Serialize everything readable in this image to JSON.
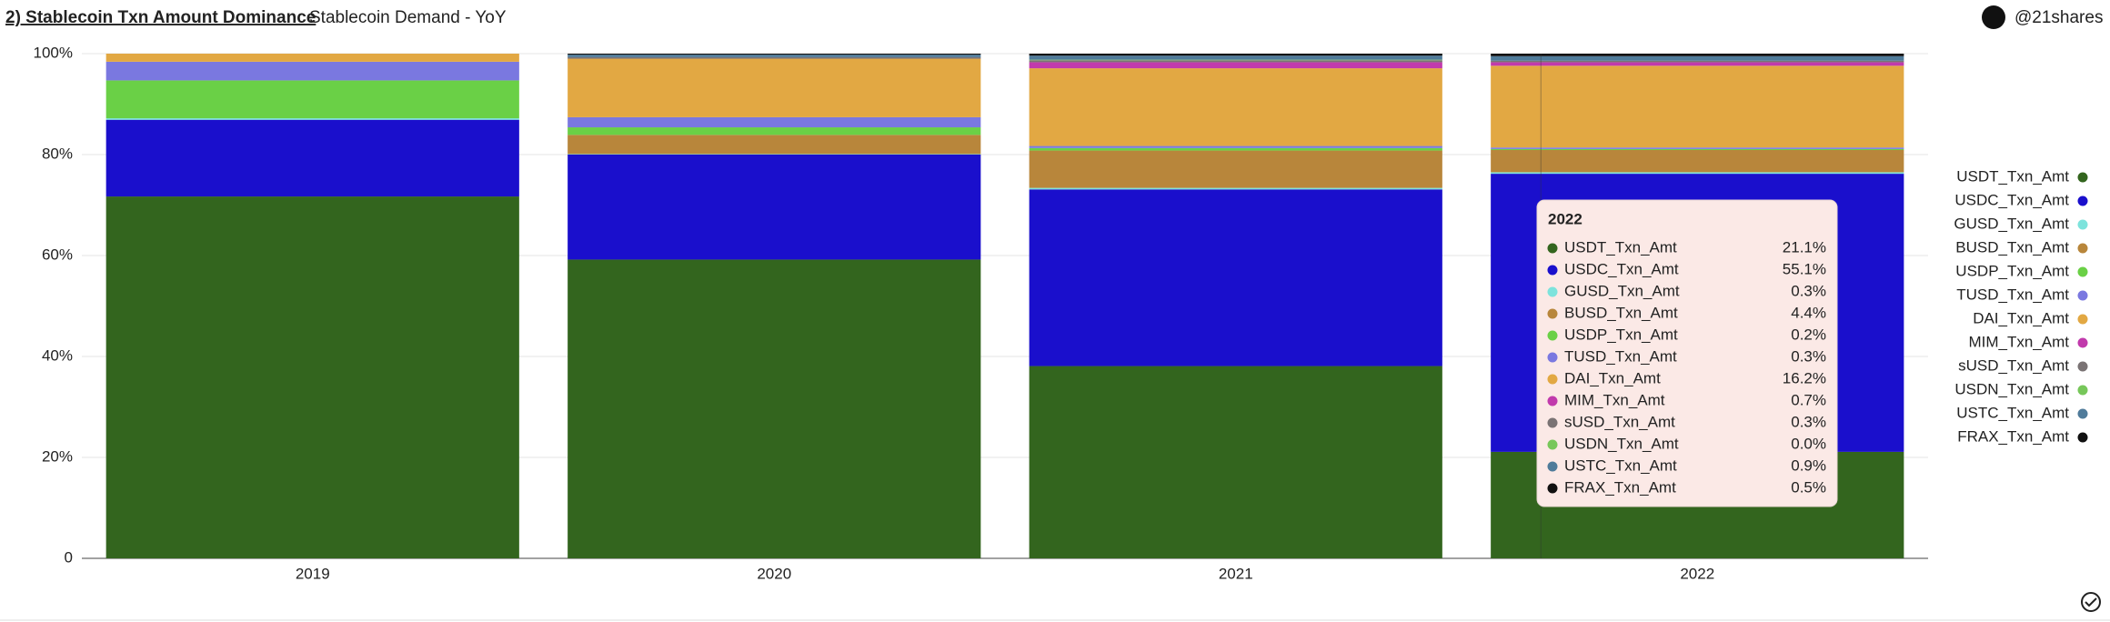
{
  "chart_data": {
    "type": "stacked_bar",
    "title": "2) Stablecoin Txn Amount Dominance",
    "subtitle": "Stablecoin Demand - YoY",
    "source": "@21shares",
    "categories": [
      "2019",
      "2020",
      "2021",
      "2022"
    ],
    "ylim": [
      0,
      100
    ],
    "yticks": [
      0,
      {
        "value": 20,
        "label": "20%"
      },
      {
        "value": 40,
        "label": "40%"
      },
      {
        "value": 60,
        "label": "60%"
      },
      {
        "value": 80,
        "label": "80%"
      },
      {
        "value": 100,
        "label": "100%"
      }
    ],
    "grid": true,
    "legend": "right",
    "series": [
      {
        "name": "USDT_Txn_Amt",
        "color": "#33651e",
        "values": [
          71.7,
          59.2,
          38.1,
          21.1
        ],
        "value_labels": [
          null,
          null,
          null,
          "21.1%"
        ]
      },
      {
        "name": "USDC_Txn_Amt",
        "color": "#1a0fcc",
        "values": [
          15.2,
          20.8,
          35.0,
          55.1
        ],
        "value_labels": [
          null,
          null,
          null,
          "55.1%"
        ]
      },
      {
        "name": "GUSD_Txn_Amt",
        "color": "#7de3dc",
        "values": [
          0.3,
          0.1,
          0.3,
          0.3
        ],
        "value_labels": [
          null,
          null,
          null,
          "0.3%"
        ]
      },
      {
        "name": "BUSD_Txn_Amt",
        "color": "#b8863b",
        "values": [
          0,
          3.8,
          7.4,
          4.4
        ],
        "value_labels": [
          null,
          null,
          null,
          "4.4%"
        ]
      },
      {
        "name": "USDP_Txn_Amt",
        "color": "#6ad046",
        "values": [
          7.5,
          1.5,
          0.5,
          0.2
        ],
        "value_labels": [
          null,
          null,
          null,
          "0.2%"
        ]
      },
      {
        "name": "TUSD_Txn_Amt",
        "color": "#7a78e0",
        "values": [
          3.7,
          2.0,
          0.4,
          0.3
        ],
        "value_labels": [
          null,
          null,
          null,
          "0.3%"
        ]
      },
      {
        "name": "DAI_Txn_Amt",
        "color": "#e2a843",
        "values": [
          1.6,
          11.6,
          15.4,
          16.2
        ],
        "value_labels": [
          null,
          null,
          null,
          "16.2%"
        ]
      },
      {
        "name": "MIM_Txn_Amt",
        "color": "#c13aac",
        "values": [
          0,
          0,
          1.2,
          0.7
        ],
        "value_labels": [
          null,
          null,
          null,
          "0.7%"
        ]
      },
      {
        "name": "sUSD_Txn_Amt",
        "color": "#7a7374",
        "values": [
          0,
          0.3,
          0.4,
          0.3
        ],
        "value_labels": [
          null,
          null,
          null,
          "0.3%"
        ]
      },
      {
        "name": "USDN_Txn_Amt",
        "color": "#77c75a",
        "values": [
          0,
          0,
          0.1,
          0.0
        ],
        "value_labels": [
          null,
          null,
          null,
          "0.0%"
        ]
      },
      {
        "name": "USTC_Txn_Amt",
        "color": "#4f7b9a",
        "values": [
          0,
          0.5,
          0.8,
          0.9
        ],
        "value_labels": [
          null,
          null,
          null,
          "0.9%"
        ]
      },
      {
        "name": "FRAX_Txn_Amt",
        "color": "#111111",
        "values": [
          0,
          0.2,
          0.4,
          0.5
        ],
        "value_labels": [
          null,
          null,
          null,
          "0.5%"
        ]
      }
    ]
  }
}
